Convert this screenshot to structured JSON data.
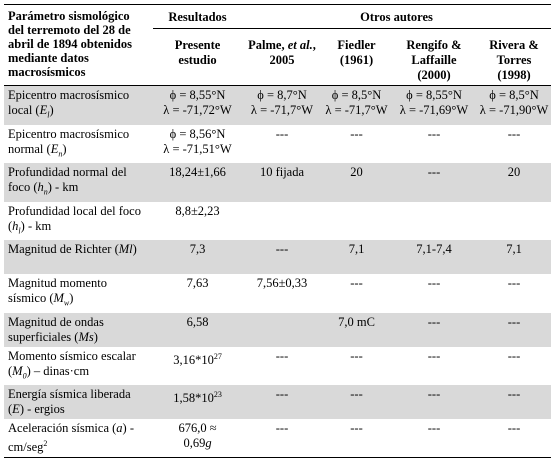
{
  "header": {
    "param_title": "Parámetro sismológico del terremoto del 28 de abril de 1894 obtenidos mediante datos macrosísmicos",
    "results_group": "Resultados",
    "others_group": "Otros autores",
    "col_present": "Presente estudio",
    "col_palme_a": "Palme,",
    "col_palme_b": "et al.",
    "col_palme_c": ", 2005",
    "col_fiedler": "Fiedler (1961)",
    "col_rengifo": "Rengifo & Laffaille (2000)",
    "col_rivera": "Rivera & Torres (1998)"
  },
  "rows": [
    {
      "label_a": "Epicentro macrosísmico local (",
      "label_var": "E",
      "label_sub": "l",
      "label_b": ")",
      "present_1": "ϕ = 8,55°N",
      "present_2": "λ = -71,72°W",
      "palme_1": "ϕ = 8,7°N",
      "palme_2": "λ = -71,7°W",
      "fiedler_1": "ϕ = 8,5°N",
      "fiedler_2": "λ = -71,7°W",
      "rengifo_1": "ϕ = 8,55°N",
      "rengifo_2": "λ = -71,69°W",
      "rivera_1": "ϕ = 8,5°N",
      "rivera_2": "λ = -71,90°W"
    },
    {
      "label_a": "Epicentro macrosísmico normal (",
      "label_var": "E",
      "label_sub": "n",
      "label_b": ")",
      "present_1": "ϕ = 8,56°N",
      "present_2": "λ = -71,51°W",
      "palme": "---",
      "fiedler": "---",
      "rengifo": "---",
      "rivera": "---"
    },
    {
      "label_a": "Profundidad normal del foco (",
      "label_var": "h",
      "label_sub": "n",
      "label_b": ") - km",
      "present": "18,24±1,66",
      "palme": "10 fijada",
      "fiedler": "20",
      "rengifo": "---",
      "rivera": "20"
    },
    {
      "label_a": "Profundidad local del foco (",
      "label_var": "h",
      "label_sub": "l",
      "label_b": ") - km",
      "present": "8,8±2,23",
      "palme": "",
      "fiedler": "",
      "rengifo": "",
      "rivera": ""
    },
    {
      "label_a": "Magnitud de Richter (",
      "label_var": "Ml",
      "label_b": ")",
      "present": "7,3",
      "palme": "---",
      "fiedler": "7,1",
      "rengifo": "7,1-7,4",
      "rivera": "7,1"
    },
    {
      "label_a": "Magnitud momento sísmico (",
      "label_var": "M",
      "label_sub": "w",
      "label_b": ")",
      "present": "7,63",
      "palme": "7,56±0,33",
      "fiedler": "---",
      "rengifo": "---",
      "rivera": "---"
    },
    {
      "label_a": "Magnitud de ondas superficiales (",
      "label_var": "Ms",
      "label_b": ")",
      "present": "6,58",
      "palme": "",
      "fiedler": "7,0 mC",
      "rengifo": "---",
      "rivera": "---"
    },
    {
      "label_a": "Momento sísmico escalar (",
      "label_var": "M",
      "label_sub": "0",
      "label_b": ") – dinas·cm",
      "present_base": "3,16*10",
      "present_sup": "27",
      "palme": "---",
      "fiedler": "---",
      "rengifo": "---",
      "rivera": "---"
    },
    {
      "label_a": "Energía sísmica liberada (",
      "label_var": "E",
      "label_b": ") - ergios",
      "present_base": "1,58*10",
      "present_sup": "23",
      "palme": "---",
      "fiedler": "---",
      "rengifo": "---",
      "rivera": "---"
    },
    {
      "label_a": "Aceleración sísmica (",
      "label_var": "a",
      "label_b": ") - cm/seg",
      "label_sup": "2",
      "present_1": "676,0 ≈",
      "present_2a": "0,69",
      "present_2b": "g",
      "palme": "---",
      "fiedler": "---",
      "rengifo": "---",
      "rivera": "---"
    }
  ]
}
